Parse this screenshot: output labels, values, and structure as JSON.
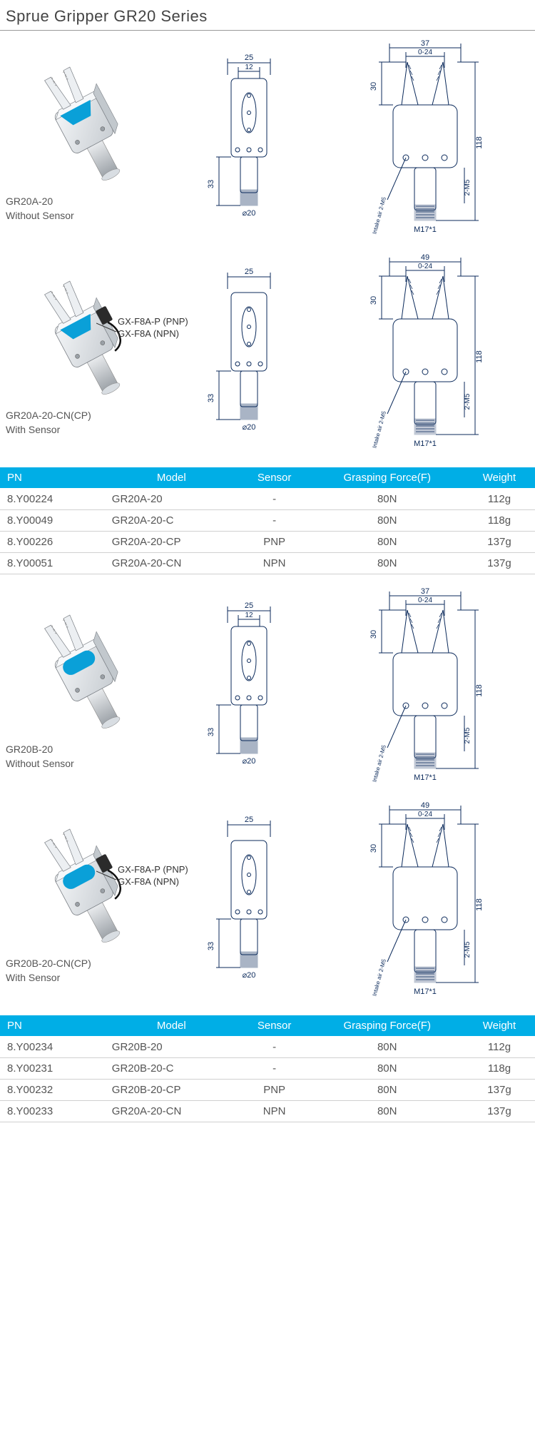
{
  "title": "Sprue Gripper GR20 Series",
  "table_headers": {
    "pn": "PN",
    "model": "Model",
    "sensor": "Sensor",
    "force": "Grasping Force(F)",
    "weight": "Weight"
  },
  "products": [
    {
      "photo": {
        "body_color": "#e6e8ea",
        "accent_color": "#0aa0d8",
        "has_sensor": false
      },
      "caption_line1": "GR20A-20",
      "caption_line2": "Without Sensor",
      "sensor_callout": null,
      "drawing_front": {
        "width_dim": "25",
        "inner_dim": "12",
        "height_dim": "33",
        "shaft_dia": "⌀20"
      },
      "drawing_side": {
        "top_width": "37",
        "open_dim": "0-24",
        "top_h": "30",
        "total_h": "118",
        "ports": "2-M5",
        "intake": "Intake air 2-M5",
        "thread": "M17*1"
      }
    },
    {
      "photo": {
        "body_color": "#e6e8ea",
        "accent_color": "#0aa0d8",
        "has_sensor": true
      },
      "caption_line1": "GR20A-20-CN(CP)",
      "caption_line2": "With Sensor",
      "sensor_callout": {
        "line1": "GX-F8A-P (PNP)",
        "line2": "GX-F8A (NPN)"
      },
      "drawing_front": {
        "width_dim": "25",
        "inner_dim": "",
        "height_dim": "33",
        "shaft_dia": "⌀20"
      },
      "drawing_side": {
        "top_width": "49",
        "open_dim": "0-24",
        "top_h": "30",
        "total_h": "118",
        "ports": "2-M5",
        "intake": "Intake air 2-M5",
        "thread": "M17*1"
      }
    }
  ],
  "table1": [
    {
      "pn": "8.Y00224",
      "model": "GR20A-20",
      "sensor": "-",
      "force": "80N",
      "weight": "112g"
    },
    {
      "pn": "8.Y00049",
      "model": "GR20A-20-C",
      "sensor": "-",
      "force": "80N",
      "weight": "118g"
    },
    {
      "pn": "8.Y00226",
      "model": "GR20A-20-CP",
      "sensor": "PNP",
      "force": "80N",
      "weight": "137g"
    },
    {
      "pn": "8.Y00051",
      "model": "GR20A-20-CN",
      "sensor": "NPN",
      "force": "80N",
      "weight": "137g"
    }
  ],
  "products2": [
    {
      "photo": {
        "body_color": "#e6e8ea",
        "accent_color": "#0aa0d8",
        "has_sensor": false,
        "style_b": true
      },
      "caption_line1": "GR20B-20",
      "caption_line2": "Without Sensor",
      "sensor_callout": null,
      "drawing_front": {
        "width_dim": "25",
        "inner_dim": "12",
        "height_dim": "33",
        "shaft_dia": "⌀20"
      },
      "drawing_side": {
        "top_width": "37",
        "open_dim": "0-24",
        "top_h": "30",
        "total_h": "118",
        "ports": "2-M5",
        "intake": "Intake air 2-M5",
        "thread": "M17*1"
      }
    },
    {
      "photo": {
        "body_color": "#e6e8ea",
        "accent_color": "#0aa0d8",
        "has_sensor": true,
        "style_b": true
      },
      "caption_line1": "GR20B-20-CN(CP)",
      "caption_line2": "With Sensor",
      "sensor_callout": {
        "line1": "GX-F8A-P (PNP)",
        "line2": "GX-F8A (NPN)"
      },
      "drawing_front": {
        "width_dim": "25",
        "inner_dim": "",
        "height_dim": "33",
        "shaft_dia": "⌀20"
      },
      "drawing_side": {
        "top_width": "49",
        "open_dim": "0-24",
        "top_h": "30",
        "total_h": "118",
        "ports": "2-M5",
        "intake": "Intake air 2-M5",
        "thread": "M17*1"
      }
    }
  ],
  "table2": [
    {
      "pn": "8.Y00234",
      "model": "GR20B-20",
      "sensor": "-",
      "force": "80N",
      "weight": "112g"
    },
    {
      "pn": "8.Y00231",
      "model": "GR20B-20-C",
      "sensor": "-",
      "force": "80N",
      "weight": "118g"
    },
    {
      "pn": "8.Y00232",
      "model": "GR20B-20-CP",
      "sensor": "PNP",
      "force": "80N",
      "weight": "137g"
    },
    {
      "pn": "8.Y00233",
      "model": "GR20A-20-CN",
      "sensor": "NPN",
      "force": "80N",
      "weight": "137g"
    }
  ],
  "colors": {
    "header_bg": "#00aee6",
    "header_text": "#ffffff",
    "border": "#d0d0d0",
    "text": "#555555"
  }
}
